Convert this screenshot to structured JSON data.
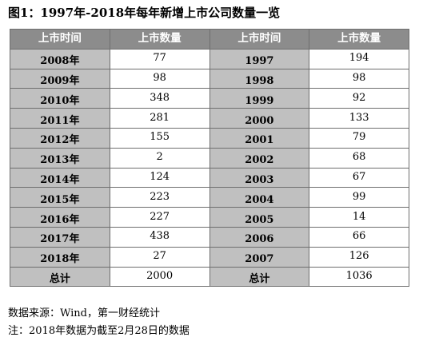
{
  "title": "图1：1997年-2018年每年新增上市公司数量一览",
  "table": {
    "headers": [
      "上市时间",
      "上市数量",
      "上市时间",
      "上市数量"
    ],
    "rows": [
      {
        "left_time": "2008年",
        "left_count": "77",
        "right_time": "1997",
        "right_count": "194"
      },
      {
        "left_time": "2009年",
        "left_count": "98",
        "right_time": "1998",
        "right_count": "98"
      },
      {
        "left_time": "2010年",
        "left_count": "348",
        "right_time": "1999",
        "right_count": "92"
      },
      {
        "left_time": "2011年",
        "left_count": "281",
        "right_time": "2000",
        "right_count": "133"
      },
      {
        "left_time": "2012年",
        "left_count": "155",
        "right_time": "2001",
        "right_count": "79"
      },
      {
        "left_time": "2013年",
        "left_count": "2",
        "right_time": "2002",
        "right_count": "68"
      },
      {
        "left_time": "2014年",
        "left_count": "124",
        "right_time": "2003",
        "right_count": "67"
      },
      {
        "left_time": "2015年",
        "left_count": "223",
        "right_time": "2004",
        "right_count": "99"
      },
      {
        "left_time": "2016年",
        "left_count": "227",
        "right_time": "2005",
        "right_count": "14"
      },
      {
        "left_time": "2017年",
        "left_count": "438",
        "right_time": "2006",
        "right_count": "66"
      },
      {
        "left_time": "2018年",
        "left_count": "27",
        "right_time": "2007",
        "right_count": "126"
      }
    ],
    "total": {
      "left_label": "总计",
      "left_count": "2000",
      "right_label": "总计",
      "right_count": "1036"
    }
  },
  "notes": {
    "source": "数据来源：Wind，第一财经统计",
    "note": "注：2018年数据为截至2月28日的数据"
  },
  "colors": {
    "header_bg": "#8c8c8c",
    "label_bg": "#c0c0c0",
    "border": "#6e6e6e"
  }
}
